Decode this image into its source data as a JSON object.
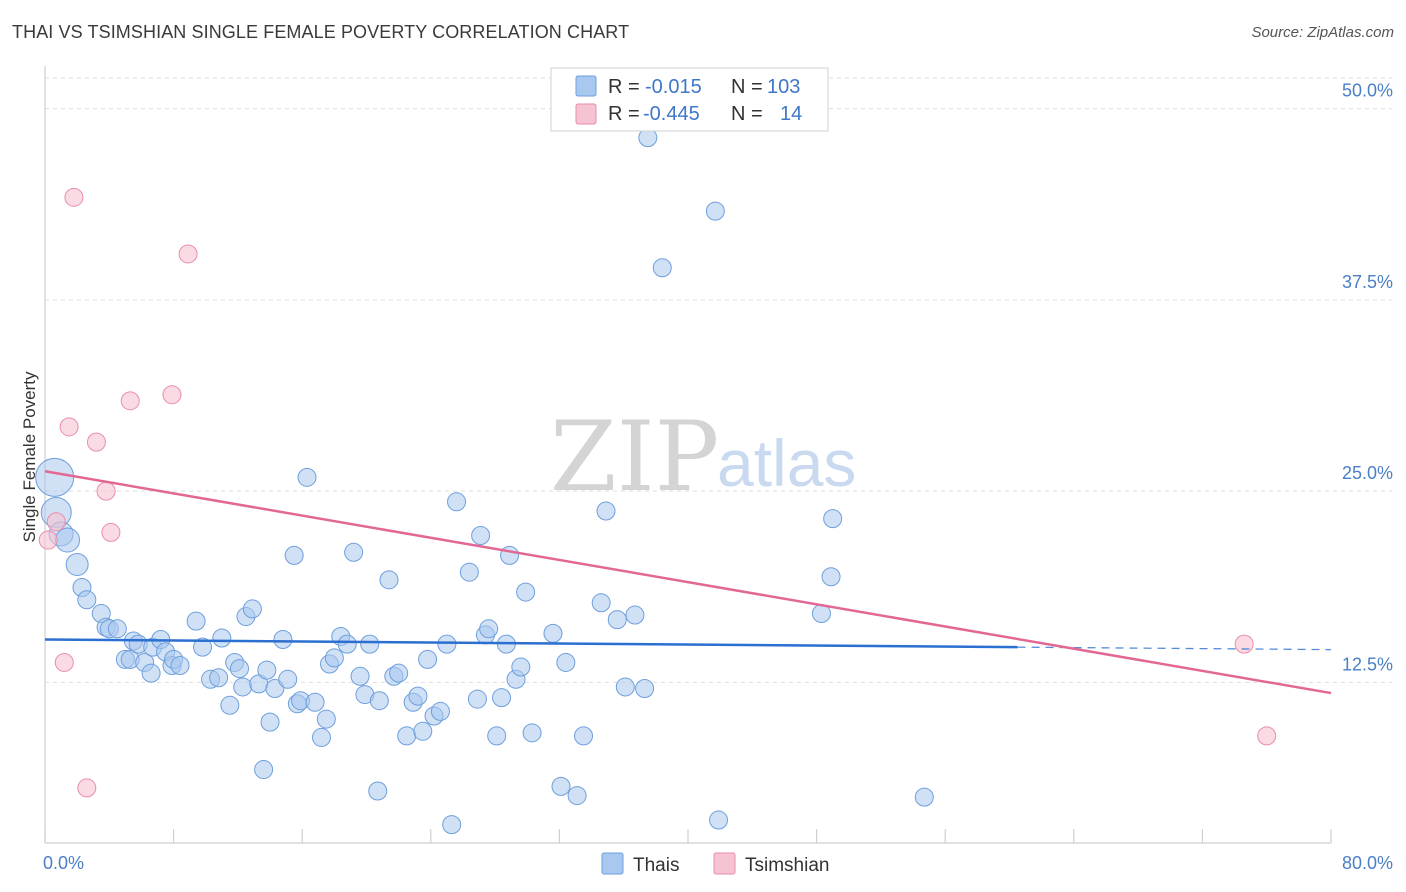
{
  "title": "THAI VS TSIMSHIAN SINGLE FEMALE POVERTY CORRELATION CHART",
  "source": "Source: ZipAtlas.com",
  "watermark": {
    "zip": "ZIP",
    "atlas": "atlas"
  },
  "legend_top": [
    {
      "r_label": "R =",
      "r_value": "-0.015",
      "n_label": "N =",
      "n_value": "103",
      "color": "#a9c8ef"
    },
    {
      "r_label": "R =",
      "r_value": "-0.445",
      "n_label": "N =",
      "n_value": "14",
      "color": "#f6b9cb"
    }
  ],
  "legend_bottom": [
    "Thais",
    "Tsimshian"
  ],
  "colors": {
    "thai_fill": "#a9c8ef",
    "thai_stroke": "#6e9fdc",
    "thai_line": "#2b6fd0",
    "tsim_fill": "#f6c3d2",
    "tsim_stroke": "#ea8dab",
    "tsim_line": "#e26893",
    "tick_text": "#4a7fc6",
    "grid": "#dedede"
  },
  "chart_data": {
    "type": "scatter",
    "title": "THAI VS TSIMSHIAN SINGLE FEMALE POVERTY CORRELATION CHART",
    "xlabel": "",
    "ylabel": "Single Female Poverty",
    "xlim": [
      0,
      80
    ],
    "ylim": [
      2,
      52
    ],
    "x_tick_labels": [
      "0.0%",
      "80.0%"
    ],
    "y_ticks": [
      12.5,
      25.0,
      37.5,
      50.0
    ],
    "y_tick_labels": [
      "12.5%",
      "25.0%",
      "37.5%",
      "50.0%"
    ],
    "grid": true,
    "legend_position": "top-center",
    "series": [
      {
        "name": "Thais",
        "r": -0.015,
        "n": 103,
        "trend": {
          "x": [
            0,
            60.5
          ],
          "y": [
            15.3,
            14.8
          ],
          "dashed_extension_to": 80
        },
        "points": [
          [
            0.6,
            25.9
          ],
          [
            0.7,
            23.6
          ],
          [
            1.0,
            22.2
          ],
          [
            1.4,
            21.8
          ],
          [
            2.0,
            20.2
          ],
          [
            2.3,
            18.7
          ],
          [
            2.6,
            17.9
          ],
          [
            3.5,
            17.0
          ],
          [
            3.8,
            16.1
          ],
          [
            4.0,
            16.0
          ],
          [
            4.5,
            16.0
          ],
          [
            5.0,
            14.0
          ],
          [
            5.3,
            14.0
          ],
          [
            5.5,
            15.2
          ],
          [
            5.8,
            15.0
          ],
          [
            6.2,
            13.8
          ],
          [
            6.6,
            13.1
          ],
          [
            6.7,
            14.8
          ],
          [
            7.2,
            15.3
          ],
          [
            7.5,
            14.5
          ],
          [
            7.9,
            13.6
          ],
          [
            8.0,
            14.0
          ],
          [
            8.4,
            13.6
          ],
          [
            9.4,
            16.5
          ],
          [
            9.8,
            14.8
          ],
          [
            10.3,
            12.7
          ],
          [
            10.8,
            12.8
          ],
          [
            11.0,
            15.4
          ],
          [
            11.5,
            11.0
          ],
          [
            11.8,
            13.8
          ],
          [
            12.1,
            13.4
          ],
          [
            12.3,
            12.2
          ],
          [
            12.5,
            16.8
          ],
          [
            12.9,
            17.3
          ],
          [
            13.3,
            12.4
          ],
          [
            13.8,
            13.3
          ],
          [
            14.0,
            9.9
          ],
          [
            14.3,
            12.1
          ],
          [
            14.8,
            15.3
          ],
          [
            15.1,
            12.7
          ],
          [
            15.5,
            20.8
          ],
          [
            15.7,
            11.1
          ],
          [
            15.9,
            11.3
          ],
          [
            16.3,
            25.9
          ],
          [
            16.8,
            11.2
          ],
          [
            17.2,
            8.9
          ],
          [
            17.5,
            10.1
          ],
          [
            17.7,
            13.7
          ],
          [
            18.0,
            14.1
          ],
          [
            18.4,
            15.5
          ],
          [
            18.8,
            15.0
          ],
          [
            19.2,
            21.0
          ],
          [
            19.6,
            12.9
          ],
          [
            19.9,
            11.7
          ],
          [
            20.2,
            15.0
          ],
          [
            20.8,
            11.3
          ],
          [
            21.4,
            19.2
          ],
          [
            21.7,
            12.9
          ],
          [
            22.0,
            13.1
          ],
          [
            22.5,
            9.0
          ],
          [
            22.9,
            11.2
          ],
          [
            23.2,
            11.6
          ],
          [
            23.5,
            9.3
          ],
          [
            23.8,
            14.0
          ],
          [
            24.2,
            10.3
          ],
          [
            24.6,
            10.6
          ],
          [
            25.0,
            15.0
          ],
          [
            25.3,
            3.2
          ],
          [
            25.6,
            24.3
          ],
          [
            26.9,
            11.4
          ],
          [
            27.1,
            22.1
          ],
          [
            27.4,
            15.6
          ],
          [
            27.6,
            16.0
          ],
          [
            28.1,
            9.0
          ],
          [
            28.4,
            11.5
          ],
          [
            28.7,
            15.0
          ],
          [
            28.9,
            20.8
          ],
          [
            29.3,
            12.7
          ],
          [
            29.6,
            13.5
          ],
          [
            29.9,
            18.4
          ],
          [
            30.3,
            9.2
          ],
          [
            31.6,
            15.7
          ],
          [
            32.1,
            5.7
          ],
          [
            32.4,
            13.8
          ],
          [
            33.1,
            5.1
          ],
          [
            33.5,
            9.0
          ],
          [
            34.6,
            17.7
          ],
          [
            34.9,
            23.7
          ],
          [
            36.1,
            12.2
          ],
          [
            37.3,
            12.1
          ],
          [
            37.5,
            48.1
          ],
          [
            41.7,
            43.3
          ],
          [
            41.9,
            3.5
          ],
          [
            48.3,
            17.0
          ],
          [
            48.9,
            19.4
          ],
          [
            49.0,
            23.2
          ],
          [
            54.7,
            5.0
          ],
          [
            38.4,
            39.6
          ],
          [
            36.7,
            16.9
          ],
          [
            35.6,
            16.6
          ],
          [
            20.7,
            5.4
          ],
          [
            13.6,
            6.8
          ],
          [
            26.4,
            19.7
          ]
        ]
      },
      {
        "name": "Tsimshian",
        "r": -0.445,
        "n": 14,
        "trend": {
          "x": [
            0,
            80
          ],
          "y": [
            26.3,
            11.8
          ]
        },
        "points": [
          [
            0.2,
            21.8
          ],
          [
            0.7,
            23.0
          ],
          [
            1.2,
            13.8
          ],
          [
            1.5,
            29.2
          ],
          [
            1.8,
            44.2
          ],
          [
            2.6,
            5.6
          ],
          [
            3.2,
            28.2
          ],
          [
            3.8,
            25.0
          ],
          [
            4.1,
            22.3
          ],
          [
            5.3,
            30.9
          ],
          [
            7.9,
            31.3
          ],
          [
            8.9,
            40.5
          ],
          [
            74.6,
            15.0
          ],
          [
            76.0,
            9.0
          ]
        ]
      }
    ]
  }
}
